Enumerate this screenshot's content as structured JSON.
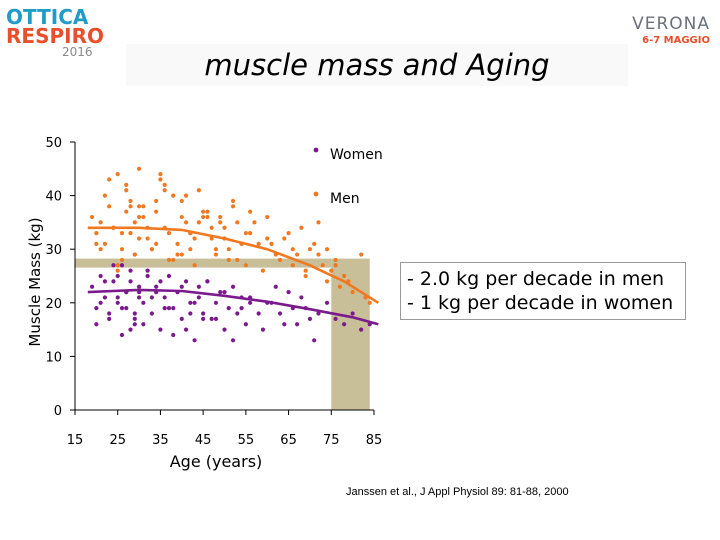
{
  "logo": {
    "line1": "OTTICA",
    "line2": "RESPIRO",
    "year": "2016",
    "city": "VERONA",
    "dates": "6-7 MAGGIO"
  },
  "slide_title": "muscle mass and Aging",
  "annotation": {
    "men_line": "- 2.0 kg per decade in men",
    "women_line": "- 1 kg per decade in women"
  },
  "citation": "Janssen et al., J Appl Physiol  89: 81-88, 2000",
  "colors": {
    "women": "#7a1a8c",
    "men": "#f07820",
    "highlight": "#c8bf99",
    "axis": "#000000"
  },
  "chart_data": {
    "type": "scatter",
    "title": "muscle mass and Aging",
    "xlabel": "Age (years)",
    "ylabel": "Muscle Mass (kg)",
    "xlim": [
      15,
      85
    ],
    "ylim": [
      0,
      50
    ],
    "x_ticks": [
      "15",
      "25",
      "35",
      "45",
      "55",
      "65",
      "75",
      "85"
    ],
    "y_ticks": [
      "0",
      "10",
      "20",
      "30",
      "40",
      "50"
    ],
    "legend": [
      "Women",
      "Men"
    ],
    "highlight": {
      "age_from": 75,
      "age_to": 84,
      "mass_level": 27.5
    },
    "series": [
      {
        "name": "Men",
        "trend": [
          [
            18,
            34
          ],
          [
            30,
            34
          ],
          [
            40,
            33.6
          ],
          [
            50,
            32
          ],
          [
            60,
            30
          ],
          [
            70,
            27
          ],
          [
            78,
            24
          ],
          [
            86,
            20
          ]
        ],
        "x": [
          19,
          20,
          21,
          22,
          23,
          24,
          25,
          26,
          27,
          28,
          29,
          30,
          20,
          22,
          24,
          26,
          28,
          30,
          21,
          23,
          25,
          27,
          29,
          25,
          26,
          27,
          28,
          29,
          30,
          31,
          32,
          33,
          34,
          35,
          36,
          37,
          38,
          39,
          40,
          41,
          42,
          43,
          44,
          45,
          31,
          33,
          35,
          37,
          39,
          41,
          43,
          45,
          32,
          34,
          36,
          38,
          40,
          42,
          44,
          30,
          36,
          42,
          34,
          40,
          46,
          47,
          48,
          49,
          50,
          51,
          52,
          53,
          54,
          55,
          56,
          46,
          48,
          50,
          52,
          54,
          56,
          47,
          49,
          51,
          53,
          55,
          58,
          60,
          62,
          64,
          66,
          68,
          70,
          59,
          61,
          63,
          65,
          67,
          69,
          57,
          60,
          63,
          66,
          69,
          71,
          72,
          73,
          74,
          75,
          76,
          77,
          78,
          80,
          82,
          84,
          72,
          74,
          76,
          79,
          83
        ],
        "y": [
          36,
          33,
          35,
          31,
          38,
          34,
          44,
          30,
          37,
          33,
          29,
          36,
          31,
          40,
          34,
          28,
          39,
          32,
          30,
          43,
          26,
          42,
          35,
          27,
          33,
          41,
          38,
          29,
          45,
          36,
          32,
          30,
          37,
          43,
          34,
          28,
          40,
          31,
          39,
          35,
          33,
          27,
          41,
          36,
          38,
          30,
          44,
          33,
          29,
          40,
          32,
          37,
          34,
          31,
          42,
          28,
          36,
          30,
          35,
          38,
          41,
          33,
          39,
          29,
          37,
          34,
          30,
          36,
          32,
          28,
          38,
          35,
          31,
          27,
          33,
          36,
          29,
          34,
          39,
          31,
          37,
          32,
          35,
          30,
          28,
          33,
          31,
          36,
          29,
          32,
          27,
          34,
          30,
          26,
          31,
          28,
          33,
          29,
          25,
          35,
          32,
          28,
          30,
          26,
          31,
          29,
          27,
          24,
          26,
          28,
          23,
          25,
          22,
          29,
          20,
          35,
          30,
          27,
          24,
          21
        ]
      },
      {
        "name": "Women",
        "trend": [
          [
            18,
            22
          ],
          [
            30,
            22.4
          ],
          [
            40,
            22.2
          ],
          [
            50,
            21.3
          ],
          [
            60,
            20.2
          ],
          [
            70,
            18.8
          ],
          [
            80,
            17.3
          ],
          [
            86,
            16
          ]
        ],
        "x": [
          19,
          20,
          21,
          22,
          23,
          24,
          25,
          26,
          27,
          28,
          29,
          30,
          20,
          22,
          24,
          26,
          28,
          30,
          21,
          23,
          25,
          27,
          29,
          25,
          26,
          27,
          28,
          29,
          30,
          31,
          32,
          33,
          34,
          35,
          36,
          37,
          38,
          39,
          40,
          41,
          42,
          43,
          44,
          45,
          31,
          33,
          35,
          37,
          39,
          41,
          43,
          45,
          32,
          34,
          36,
          38,
          40,
          42,
          44,
          46,
          47,
          48,
          49,
          50,
          51,
          52,
          53,
          54,
          55,
          56,
          46,
          48,
          50,
          52,
          54,
          56,
          58,
          60,
          62,
          64,
          66,
          68,
          70,
          59,
          61,
          63,
          65,
          67,
          69,
          71,
          72,
          74,
          76,
          78,
          80,
          82,
          84
        ],
        "y": [
          23,
          19,
          25,
          21,
          17,
          24,
          20,
          14,
          22,
          26,
          18,
          21,
          16,
          24,
          27,
          19,
          15,
          23,
          20,
          18,
          25,
          22,
          17,
          21,
          27,
          19,
          24,
          16,
          22,
          20,
          26,
          18,
          23,
          15,
          21,
          25,
          19,
          22,
          17,
          24,
          20,
          13,
          23,
          18,
          16,
          21,
          24,
          19,
          22,
          15,
          20,
          17,
          25,
          22,
          19,
          14,
          23,
          18,
          21,
          24,
          17,
          20,
          22,
          15,
          19,
          23,
          18,
          21,
          16,
          20,
          24,
          17,
          22,
          13,
          19,
          21,
          18,
          20,
          23,
          16,
          19,
          21,
          17,
          15,
          20,
          18,
          22,
          16,
          19,
          13,
          18,
          20,
          17,
          16,
          18,
          15,
          16
        ]
      }
    ]
  }
}
